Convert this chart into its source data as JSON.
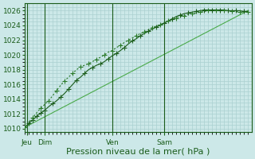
{
  "background_color": "#cce8e8",
  "grid_color": "#aad0d0",
  "line_color_dark": "#1a5c1a",
  "line_color_mid": "#2a7a2a",
  "line_color_light": "#4aaa4a",
  "ylabel_ticks": [
    1010,
    1012,
    1014,
    1016,
    1018,
    1020,
    1022,
    1024,
    1026
  ],
  "xlabel": "Pression niveau de la mer( hPa )",
  "xtick_labels": [
    "Jeu",
    "Dim",
    "Ven",
    "Sam"
  ],
  "xtick_positions": [
    0.5,
    5,
    22,
    35
  ],
  "xlim": [
    0,
    57
  ],
  "ylim": [
    1009.5,
    1027
  ],
  "line1_x": [
    0,
    1,
    2,
    3,
    4,
    5,
    6,
    7,
    8,
    9,
    10,
    11,
    12,
    13,
    14,
    15,
    16,
    17,
    18,
    19,
    20,
    21,
    22,
    23,
    24,
    25,
    26,
    27,
    28,
    29,
    30,
    31,
    32,
    33,
    34,
    35,
    36,
    37,
    38,
    39,
    40,
    41,
    42,
    43,
    44,
    45,
    46,
    47,
    48,
    49,
    50,
    51,
    52,
    53,
    54,
    55,
    56
  ],
  "line1_y": [
    1010.2,
    1010.7,
    1011.2,
    1011.7,
    1012.1,
    1012.5,
    1013.0,
    1013.4,
    1013.8,
    1014.3,
    1014.8,
    1015.4,
    1016.0,
    1016.6,
    1017.0,
    1017.5,
    1018.0,
    1018.3,
    1018.6,
    1018.8,
    1019.1,
    1019.5,
    1019.9,
    1020.2,
    1020.6,
    1021.0,
    1021.5,
    1021.9,
    1022.2,
    1022.6,
    1022.9,
    1023.2,
    1023.5,
    1023.8,
    1024.0,
    1024.3,
    1024.6,
    1024.9,
    1025.2,
    1025.4,
    1025.6,
    1025.7,
    1025.8,
    1025.9,
    1026.0,
    1026.1,
    1026.1,
    1026.1,
    1026.1,
    1026.1,
    1026.1,
    1026.0,
    1026.0,
    1026.0,
    1026.0,
    1025.9,
    1025.9
  ],
  "line2_x": [
    0,
    1,
    2,
    3,
    4,
    5,
    6,
    7,
    8,
    9,
    10,
    11,
    12,
    13,
    14,
    15,
    16,
    17,
    18,
    19,
    20,
    21,
    22,
    23,
    24,
    25,
    26,
    27,
    28,
    29,
    30,
    31,
    32,
    33,
    34,
    35,
    36,
    37,
    38,
    39,
    40,
    41,
    42,
    43,
    44,
    45,
    46,
    47,
    48,
    49,
    50,
    51,
    52,
    53,
    54,
    55,
    56
  ],
  "line2_y": [
    1010.2,
    1010.9,
    1011.5,
    1012.2,
    1012.8,
    1013.3,
    1013.8,
    1014.5,
    1015.2,
    1015.9,
    1016.5,
    1017.0,
    1017.5,
    1018.0,
    1018.4,
    1018.6,
    1018.8,
    1019.1,
    1019.4,
    1019.7,
    1020.0,
    1020.4,
    1020.6,
    1021.0,
    1021.3,
    1021.7,
    1022.0,
    1022.3,
    1022.6,
    1022.9,
    1023.1,
    1023.4,
    1023.7,
    1023.9,
    1024.1,
    1024.4,
    1024.6,
    1024.8,
    1025.0,
    1025.2,
    1025.3,
    1025.5,
    1025.6,
    1025.7,
    1025.8,
    1025.9,
    1026.0,
    1026.0,
    1026.0,
    1026.0,
    1026.0,
    1026.0,
    1025.9,
    1025.9,
    1025.8,
    1025.8,
    1025.8
  ],
  "line3_x": [
    0,
    56
  ],
  "line3_y": [
    1010.2,
    1026.0
  ],
  "marker_x1": [
    0,
    1,
    2,
    3,
    4,
    5,
    7,
    9,
    11,
    13,
    15,
    17,
    19,
    21,
    23,
    25,
    27,
    29,
    31,
    33,
    35,
    37,
    39,
    41,
    43,
    45,
    47,
    49,
    51,
    53,
    55
  ],
  "marker_y1": [
    1010.2,
    1010.7,
    1011.2,
    1011.7,
    1012.1,
    1012.5,
    1013.4,
    1014.3,
    1015.4,
    1016.6,
    1017.5,
    1018.3,
    1018.8,
    1019.5,
    1020.2,
    1021.0,
    1021.9,
    1022.6,
    1023.2,
    1023.8,
    1024.3,
    1024.9,
    1025.4,
    1025.7,
    1025.9,
    1026.1,
    1026.1,
    1026.1,
    1026.0,
    1026.0,
    1025.9
  ],
  "marker_x2": [
    0,
    2,
    4,
    6,
    8,
    10,
    12,
    14,
    16,
    18,
    20,
    22,
    24,
    26,
    28,
    30,
    32,
    34,
    36,
    38,
    40,
    42,
    44,
    46,
    48,
    50,
    52,
    54,
    56
  ],
  "marker_y2": [
    1010.2,
    1011.5,
    1012.8,
    1013.8,
    1015.2,
    1016.5,
    1017.5,
    1018.4,
    1018.8,
    1019.4,
    1020.0,
    1020.6,
    1021.3,
    1022.0,
    1022.6,
    1023.1,
    1023.7,
    1024.1,
    1024.6,
    1025.0,
    1025.3,
    1025.6,
    1025.8,
    1026.0,
    1026.0,
    1026.0,
    1025.9,
    1025.8,
    1025.8
  ],
  "vline_positions": [
    0.5,
    5,
    22,
    35
  ],
  "ylabel_fontsize": 6.5,
  "xlabel_fontsize": 8,
  "tick_fontsize": 6.5
}
